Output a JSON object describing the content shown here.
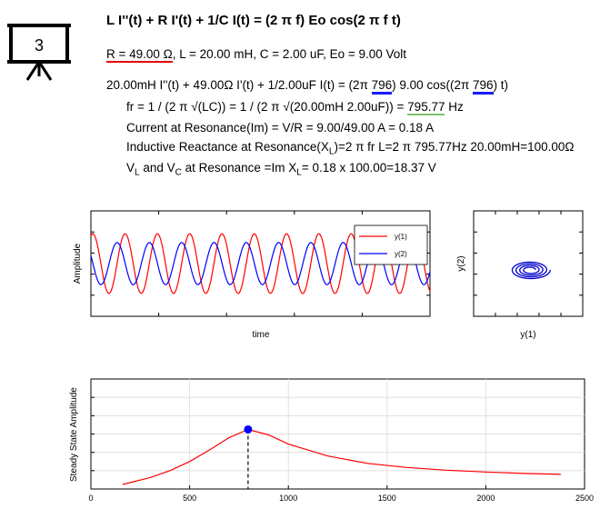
{
  "slide_icon": {
    "number": "3",
    "icon": "presentation-board-icon"
  },
  "header": {
    "equation": "L I''(t) + R I'(t) + 1/C I(t) = (2 π f) Eo cos(2 π f t)",
    "params_r": "R = 49.00 Ω",
    "params_rest": ", L = 20.00 mH, C = 2.00 uF, Eo = 9.00 Volt"
  },
  "lines": {
    "ode_a": "20.00mH I''(t) + 49.00Ω I'(t) + 1/2.00uF I(t) = (2π ",
    "ode_f1": "796",
    "ode_b": ") 9.00 cos((2π ",
    "ode_f2": "796",
    "ode_c": ") t)",
    "fr_a": "fr = 1 / (2 π √(LC)) = 1 / (2 π √(20.00mH 2.00uF)) = ",
    "fr_val": "795.77",
    "fr_unit": " Hz",
    "current": "Current at Resonance(Im) = V/R = 9.00/49.00 A = 0.18 A",
    "react_a": "Inductive Reactance at Resonance(X",
    "react_sub": "L",
    "react_b": ")=2 π fr L=2 π 795.77Hz 20.00mH=100.00Ω",
    "v_a": "V",
    "v_sub1": "L",
    "v_b": " and V",
    "v_sub2": "C",
    "v_c": " at Resonance =Im X",
    "v_sub3": "L",
    "v_d": "= 0.18 x 100.00=18.37 V"
  },
  "chart_data": [
    {
      "type": "line",
      "xlabel": "time",
      "ylabel": "Amplitude",
      "legend_position": "top-right",
      "series": [
        {
          "name": "y(1)",
          "color": "#ff0000",
          "cycles": 10.5,
          "phase": 1.2,
          "amplitude": 0.85
        },
        {
          "name": "y(2)",
          "color": "#0000ff",
          "cycles": 10.5,
          "phase": 2.75,
          "amplitude": 0.6
        }
      ],
      "ylim": [
        -1.5,
        1.5
      ]
    },
    {
      "type": "line",
      "xlabel": "y(1)",
      "ylabel": "y(2)",
      "description_color": "#0000cc"
    },
    {
      "type": "line",
      "ylabel": "Steady State Amplitude",
      "xlim": [
        0,
        2500
      ],
      "xticks": [
        0,
        500,
        1000,
        1500,
        2000,
        2500
      ],
      "xtick_labels": [
        "0",
        "500",
        "1000",
        "1500",
        "2000",
        "2500"
      ],
      "series": [
        {
          "name": "",
          "color": "#ff0000",
          "x": [
            160,
            300,
            400,
            500,
            600,
            700,
            796,
            900,
            1000,
            1200,
            1400,
            1600,
            1800,
            2000,
            2200,
            2380
          ],
          "y": [
            0.1,
            0.25,
            0.4,
            0.6,
            0.85,
            1.12,
            1.3,
            1.18,
            0.98,
            0.72,
            0.56,
            0.47,
            0.41,
            0.37,
            0.34,
            0.32
          ]
        }
      ],
      "ylim": [
        0,
        2.4
      ],
      "resonance_marker": {
        "x": 796,
        "y": 1.3,
        "color": "#0000ff"
      }
    }
  ]
}
